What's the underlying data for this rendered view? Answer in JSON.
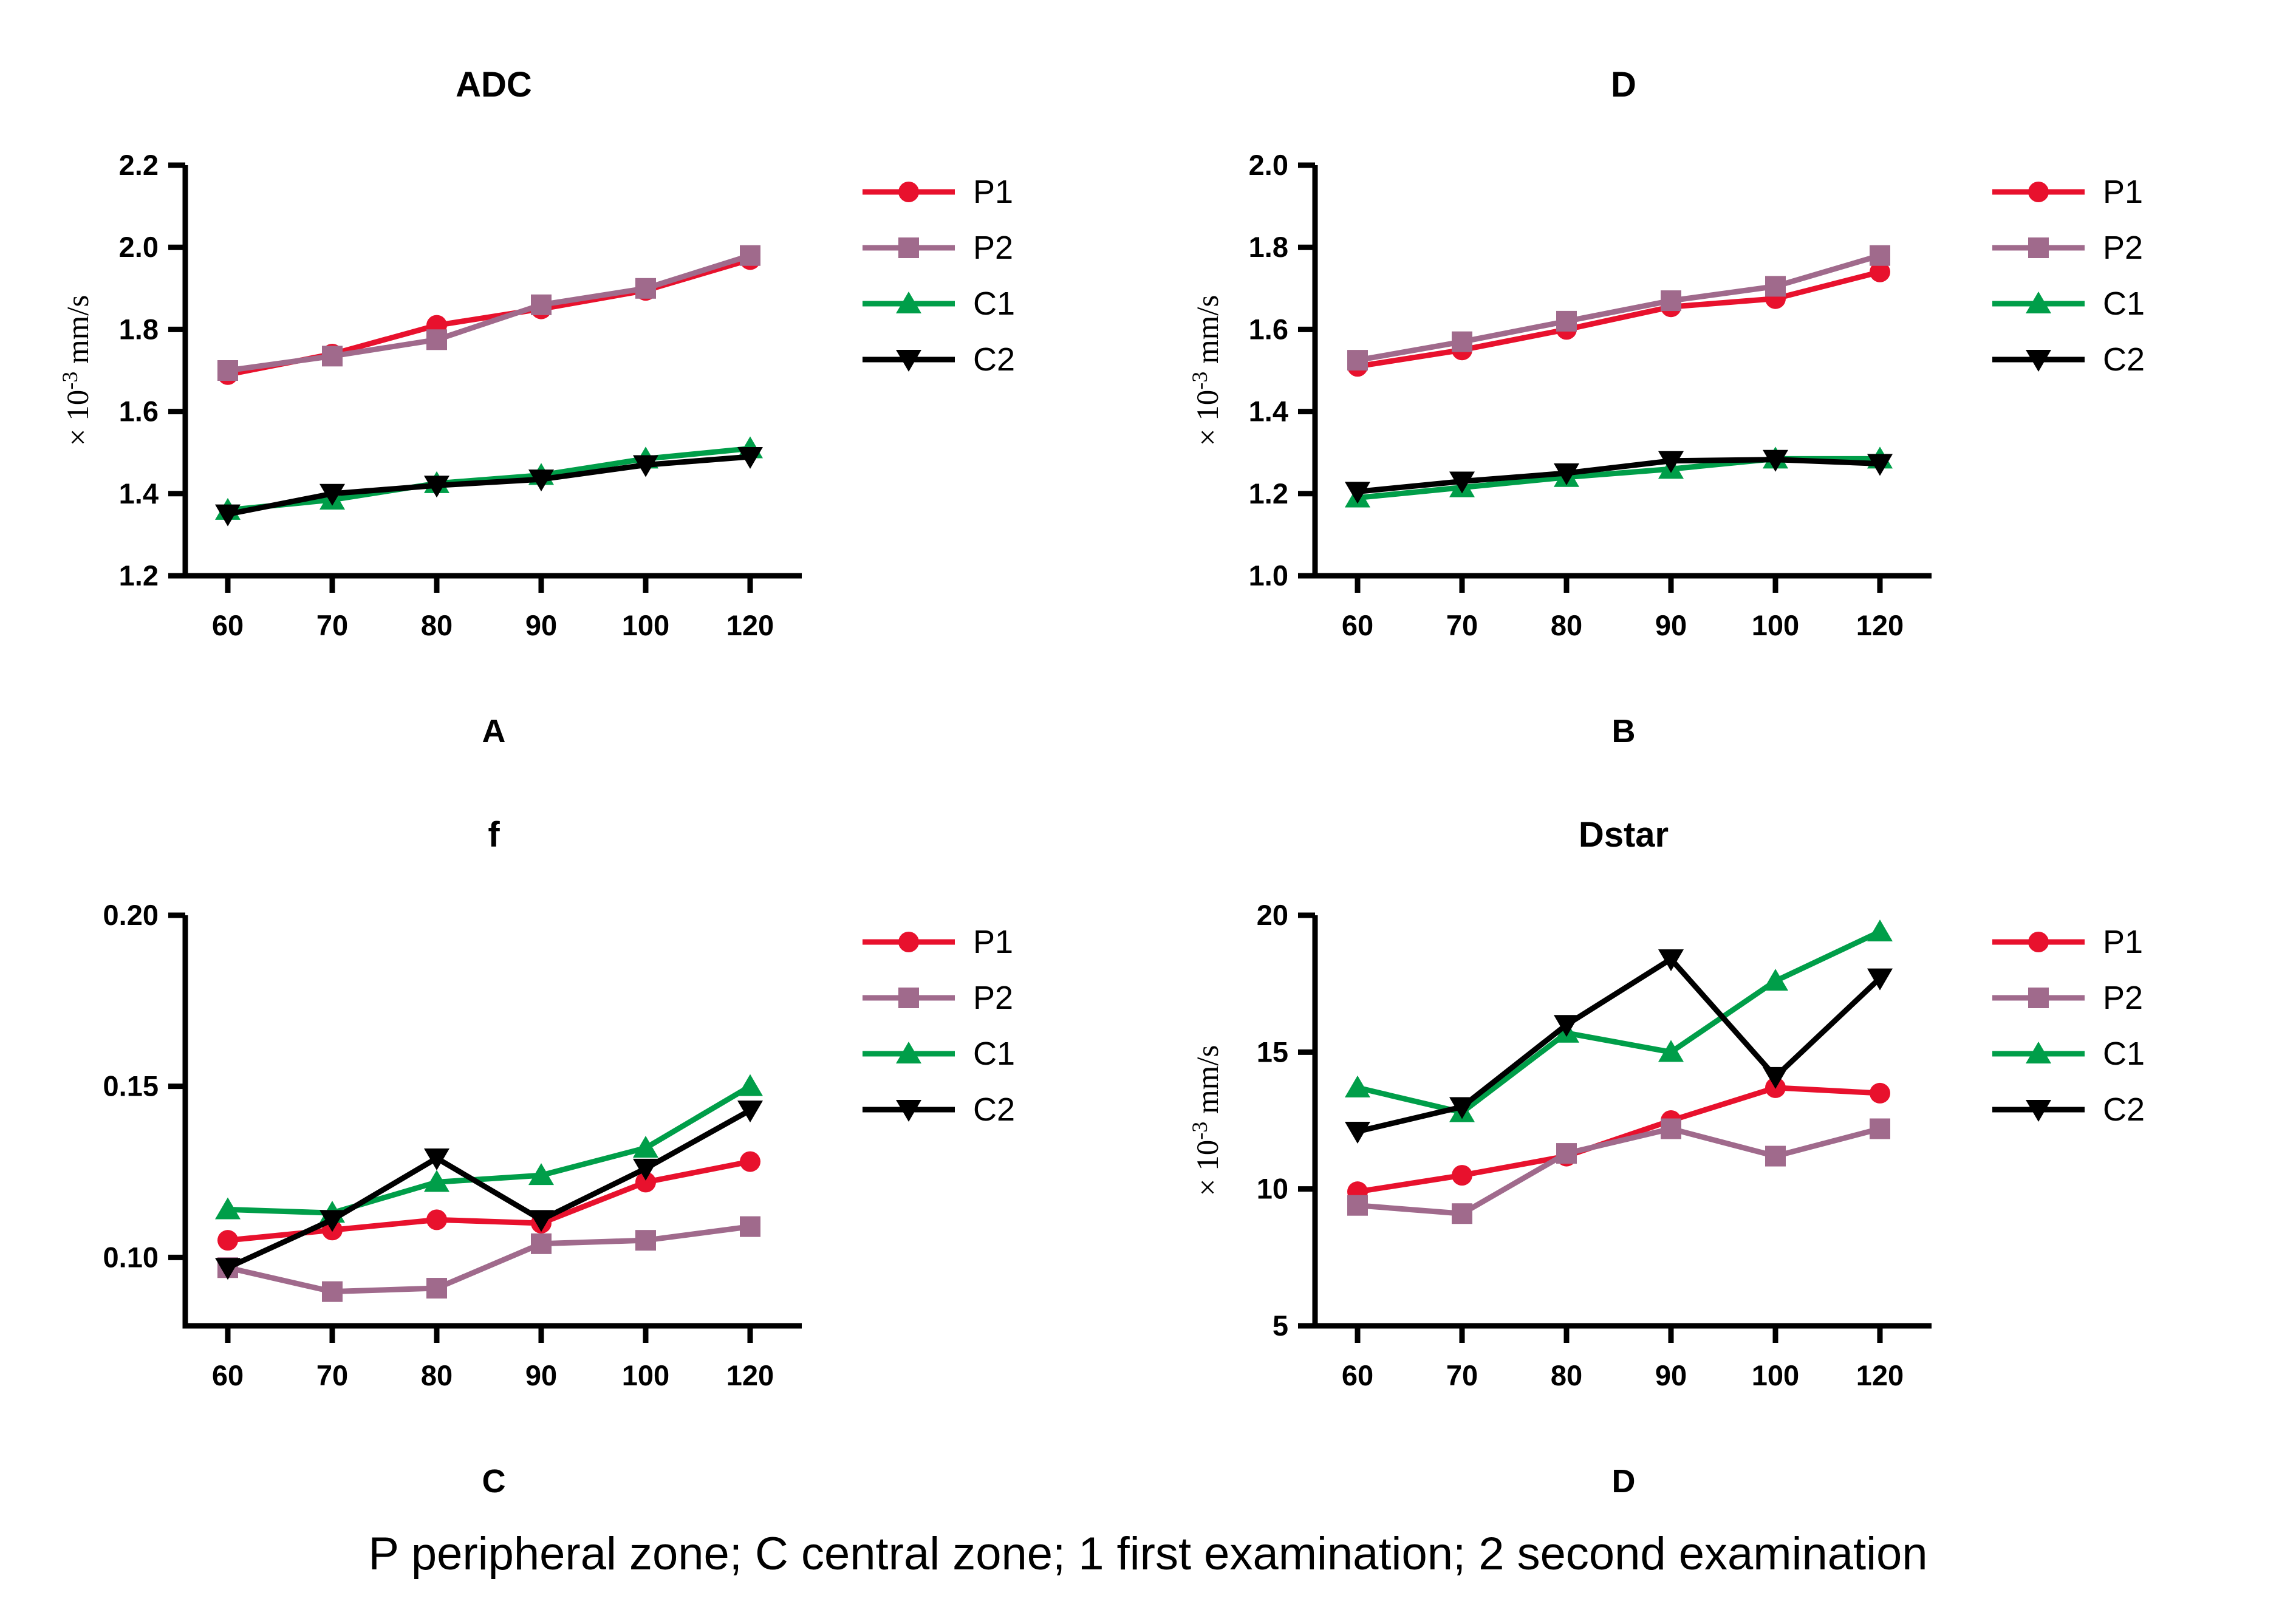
{
  "caption": "P peripheral zone; C central zone; 1 first examination; 2 second examination",
  "ylabel_parts": {
    "prefix": "× 10",
    "sup": "-3",
    "suffix": " mm/s"
  },
  "chart_data": [
    {
      "type": "line",
      "title": "ADC",
      "panel_label": "A",
      "ylabel": "× 10⁻³ mm/s",
      "show_ylabel": true,
      "xlabel": "",
      "categories": [
        "60",
        "70",
        "80",
        "90",
        "100",
        "120"
      ],
      "ylim": [
        1.2,
        2.2
      ],
      "yticks": [
        1.2,
        1.4,
        1.6,
        1.8,
        2.0,
        2.2
      ],
      "ytick_labels": [
        "1.2",
        "1.4",
        "1.6",
        "1.8",
        "2.0",
        "2.2"
      ],
      "grid": "off",
      "legend_position": "right",
      "series": [
        {
          "name": "P1",
          "color": "#e8112d",
          "marker": "circle",
          "values": [
            1.69,
            1.74,
            1.81,
            1.85,
            1.895,
            1.97
          ]
        },
        {
          "name": "P2",
          "color": "#a06a8c",
          "marker": "square",
          "values": [
            1.7,
            1.735,
            1.775,
            1.86,
            1.9,
            1.98
          ]
        },
        {
          "name": "C1",
          "color": "#009e49",
          "marker": "triangle-up",
          "values": [
            1.36,
            1.385,
            1.425,
            1.445,
            1.485,
            1.51
          ]
        },
        {
          "name": "C2",
          "color": "#000000",
          "marker": "triangle-down",
          "values": [
            1.35,
            1.4,
            1.42,
            1.435,
            1.47,
            1.49
          ]
        }
      ]
    },
    {
      "type": "line",
      "title": "D",
      "panel_label": "B",
      "ylabel": "× 10⁻³ mm/s",
      "show_ylabel": true,
      "xlabel": "",
      "categories": [
        "60",
        "70",
        "80",
        "90",
        "100",
        "120"
      ],
      "ylim": [
        1.0,
        2.0
      ],
      "yticks": [
        1.0,
        1.2,
        1.4,
        1.6,
        1.8,
        2.0
      ],
      "ytick_labels": [
        "1.0",
        "1.2",
        "1.4",
        "1.6",
        "1.8",
        "2.0"
      ],
      "grid": "off",
      "legend_position": "right",
      "series": [
        {
          "name": "P1",
          "color": "#e8112d",
          "marker": "circle",
          "values": [
            1.51,
            1.55,
            1.6,
            1.655,
            1.675,
            1.74
          ]
        },
        {
          "name": "P2",
          "color": "#a06a8c",
          "marker": "square",
          "values": [
            1.525,
            1.57,
            1.62,
            1.67,
            1.705,
            1.78
          ]
        },
        {
          "name": "C1",
          "color": "#009e49",
          "marker": "triangle-up",
          "values": [
            1.19,
            1.215,
            1.24,
            1.26,
            1.285,
            1.285
          ]
        },
        {
          "name": "C2",
          "color": "#000000",
          "marker": "triangle-down",
          "values": [
            1.205,
            1.23,
            1.25,
            1.28,
            1.283,
            1.273
          ]
        }
      ]
    },
    {
      "type": "line",
      "title": "f",
      "panel_label": "C",
      "ylabel": "",
      "show_ylabel": false,
      "xlabel": "",
      "categories": [
        "60",
        "70",
        "80",
        "90",
        "100",
        "120"
      ],
      "ylim": [
        0.08,
        0.2
      ],
      "yticks": [
        0.1,
        0.15,
        0.2
      ],
      "ytick_labels": [
        "0.10",
        "0.15",
        "0.20"
      ],
      "grid": "off",
      "legend_position": "right",
      "series": [
        {
          "name": "P1",
          "color": "#e8112d",
          "marker": "circle",
          "values": [
            0.105,
            0.108,
            0.111,
            0.11,
            0.122,
            0.128
          ]
        },
        {
          "name": "P2",
          "color": "#a06a8c",
          "marker": "square",
          "values": [
            0.097,
            0.09,
            0.091,
            0.104,
            0.105,
            0.109
          ]
        },
        {
          "name": "C1",
          "color": "#009e49",
          "marker": "triangle-up",
          "values": [
            0.114,
            0.113,
            0.122,
            0.124,
            0.132,
            0.15
          ]
        },
        {
          "name": "C2",
          "color": "#000000",
          "marker": "triangle-down",
          "values": [
            0.097,
            0.111,
            0.129,
            0.111,
            0.126,
            0.143
          ]
        }
      ]
    },
    {
      "type": "line",
      "title": "Dstar",
      "panel_label": "D",
      "ylabel": "× 10⁻³ mm/s",
      "show_ylabel": true,
      "xlabel": "",
      "categories": [
        "60",
        "70",
        "80",
        "90",
        "100",
        "120"
      ],
      "ylim": [
        5,
        20
      ],
      "yticks": [
        5,
        10,
        15,
        20
      ],
      "ytick_labels": [
        "5",
        "10",
        "15",
        "20"
      ],
      "grid": "off",
      "legend_position": "right",
      "series": [
        {
          "name": "P1",
          "color": "#e8112d",
          "marker": "circle",
          "values": [
            9.9,
            10.5,
            11.2,
            12.5,
            13.7,
            13.5
          ]
        },
        {
          "name": "P2",
          "color": "#a06a8c",
          "marker": "square",
          "values": [
            9.4,
            9.1,
            11.3,
            12.2,
            11.2,
            12.2
          ]
        },
        {
          "name": "C1",
          "color": "#009e49",
          "marker": "triangle-up",
          "values": [
            13.7,
            12.8,
            15.7,
            15.0,
            17.6,
            19.4
          ]
        },
        {
          "name": "C2",
          "color": "#000000",
          "marker": "triangle-down",
          "values": [
            12.1,
            13.0,
            16.0,
            18.4,
            14.1,
            17.7
          ]
        }
      ]
    }
  ]
}
